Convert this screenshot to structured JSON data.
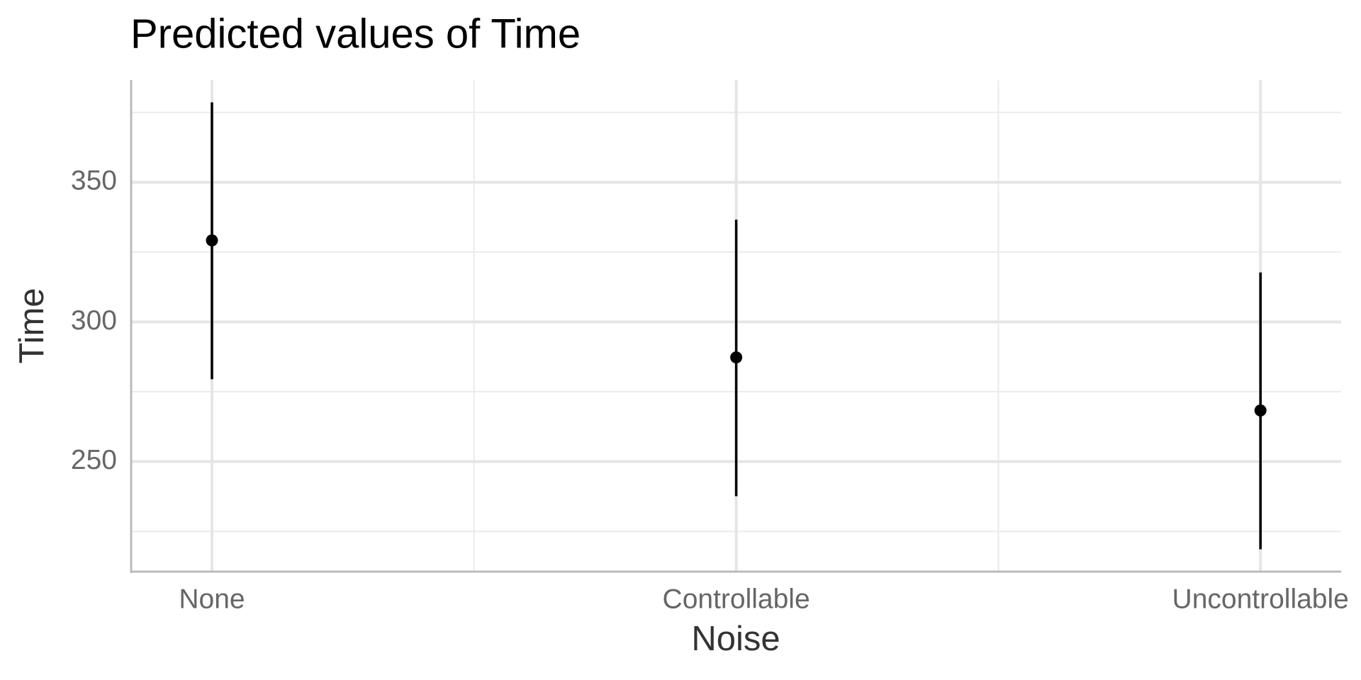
{
  "chart_data": {
    "type": "pointrange",
    "title": "Predicted values of Time",
    "x_label": "Noise",
    "y_label": "Time",
    "categories": [
      "None",
      "Controllable",
      "Uncontrollable"
    ],
    "values": [
      329.2,
      287.3,
      268.3
    ],
    "lower": [
      279.5,
      237.6,
      218.6
    ],
    "upper": [
      378.6,
      336.6,
      317.7
    ],
    "color": "#000000",
    "ylim": [
      210.6,
      386.6
    ],
    "yticks": [
      250,
      300,
      350
    ],
    "minor_yticks": [
      225,
      275,
      325,
      375
    ],
    "grid": true
  }
}
